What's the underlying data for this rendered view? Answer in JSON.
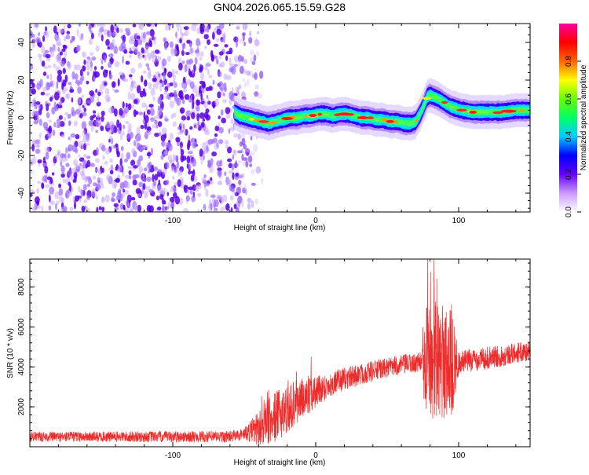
{
  "title": "GN04.2026.065.15.59.G28",
  "chart_data": [
    {
      "type": "heatmap",
      "xlabel": "Height of straight line (km)",
      "ylabel": "Frequency (Hz)",
      "xlim": [
        -200,
        150
      ],
      "ylim": [
        -50,
        50
      ],
      "xticks": [
        -100,
        0,
        100
      ],
      "yticks": [
        -40,
        -20,
        0,
        20,
        40
      ],
      "noise_region_x": [
        -200,
        -35
      ],
      "noise_fade_x": [
        -55,
        -35
      ],
      "ridge": {
        "x": [
          -57,
          -53,
          -48,
          -43,
          -38,
          -33,
          -28,
          -23,
          -18,
          -13,
          -8,
          -3,
          2,
          7,
          12,
          17,
          22,
          27,
          32,
          37,
          42,
          47,
          52,
          57,
          62,
          67,
          70,
          73,
          76,
          78,
          80,
          83,
          86,
          90,
          94,
          98,
          102,
          110,
          120,
          130,
          140,
          150
        ],
        "y": [
          3,
          1,
          0,
          -1,
          -2,
          -3,
          -2,
          -1,
          0,
          0,
          1,
          1,
          2,
          2,
          1,
          2,
          2,
          1,
          0,
          0,
          -1,
          -1,
          -2,
          -2,
          -3,
          -3,
          -2,
          2,
          7,
          11,
          12,
          11,
          10,
          8,
          6,
          5,
          4,
          3,
          3,
          3,
          4,
          4
        ]
      },
      "colorbar": {
        "label": "Normalized spectral amplitude",
        "range": [
          0,
          1
        ],
        "ticks": [
          0.0,
          0.2,
          0.4,
          0.6,
          0.8
        ],
        "tick_labels": [
          "0.0",
          "0.2",
          "0.4",
          "0.6",
          "0.8"
        ],
        "colors": [
          "#ffffff",
          "#cc99ff",
          "#6600ff",
          "#0000ff",
          "#00ccff",
          "#00ff66",
          "#66ff00",
          "#ffff00",
          "#ff6600",
          "#ff0000",
          "#ff0099"
        ]
      }
    },
    {
      "type": "line",
      "xlabel": "Height of straight line (km)",
      "ylabel": "SNR (10 * v/v)",
      "xlim": [
        -200,
        150
      ],
      "ylim": [
        0,
        9400
      ],
      "xticks": [
        -100,
        0,
        100
      ],
      "yticks": [
        2000,
        4000,
        6000,
        8000
      ],
      "color": "#ee2c2c",
      "trend": {
        "x": [
          -200,
          -60,
          -50,
          -40,
          -30,
          -20,
          -10,
          0,
          10,
          20,
          30,
          40,
          50,
          60,
          70,
          75,
          80,
          90,
          100,
          110,
          120,
          130,
          140,
          150
        ],
        "y": [
          500,
          500,
          650,
          900,
          1400,
          1900,
          2400,
          2800,
          3100,
          3400,
          3600,
          3800,
          3950,
          4100,
          4200,
          4300,
          4350,
          4300,
          4200,
          4350,
          4450,
          4550,
          4700,
          4800
        ]
      },
      "noise_amplitude": {
        "x": [
          -200,
          -50,
          -40,
          -30,
          -10,
          10,
          50,
          74,
          76,
          95,
          100,
          150
        ],
        "y": [
          250,
          300,
          900,
          1300,
          1100,
          600,
          500,
          500,
          3000,
          3000,
          600,
          500
        ]
      }
    }
  ]
}
